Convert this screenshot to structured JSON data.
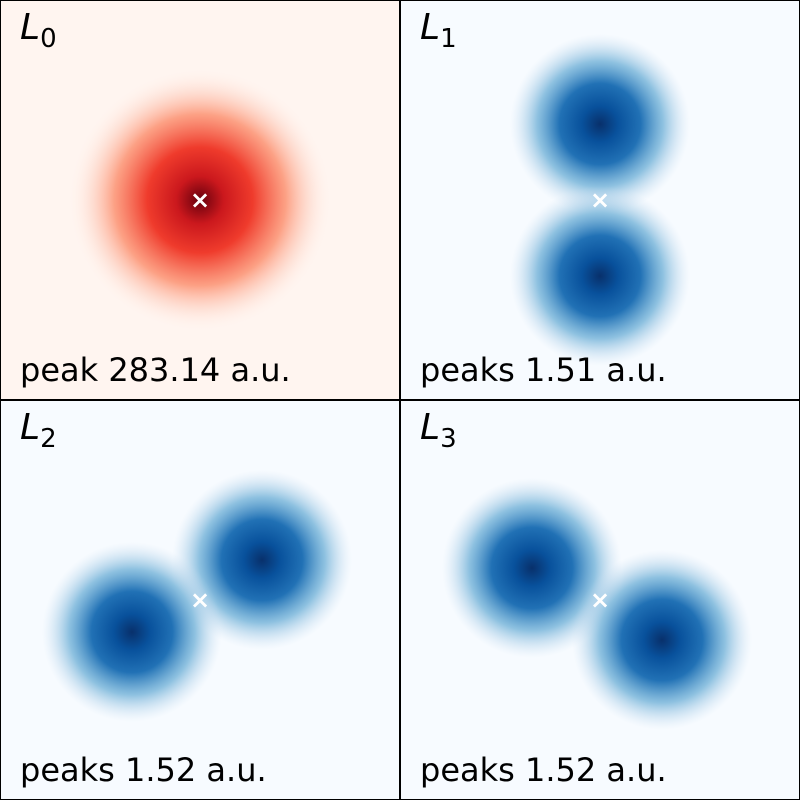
{
  "chart_data": [
    {
      "type": "heatmap",
      "title_main": "L",
      "title_sub": "0",
      "colormap": "Reds",
      "annotation": "peak 283.14 a.u.",
      "peak_value": 283.14,
      "center_marker": "×",
      "lobes": [
        {
          "x": 0.0,
          "y": 0.0,
          "sigma": 0.11
        }
      ]
    },
    {
      "type": "heatmap",
      "title_main": "L",
      "title_sub": "1",
      "colormap": "Blues",
      "annotation": "peaks 1.51 a.u.",
      "peak_value": 1.51,
      "center_marker": "×",
      "lobes": [
        {
          "x": 0.0,
          "y": 0.19,
          "sigma": 0.075
        },
        {
          "x": 0.0,
          "y": -0.19,
          "sigma": 0.075
        }
      ]
    },
    {
      "type": "heatmap",
      "title_main": "L",
      "title_sub": "2",
      "colormap": "Blues",
      "annotation": "peaks 1.52 a.u.",
      "peak_value": 1.52,
      "center_marker": "×",
      "lobes": [
        {
          "x": 0.155,
          "y": 0.1,
          "sigma": 0.075
        },
        {
          "x": -0.17,
          "y": -0.08,
          "sigma": 0.075
        }
      ]
    },
    {
      "type": "heatmap",
      "title_main": "L",
      "title_sub": "3",
      "colormap": "Blues",
      "annotation": "peaks 1.52 a.u.",
      "peak_value": 1.52,
      "center_marker": "×",
      "lobes": [
        {
          "x": -0.17,
          "y": 0.08,
          "sigma": 0.075
        },
        {
          "x": 0.155,
          "y": -0.1,
          "sigma": 0.075
        }
      ]
    }
  ]
}
